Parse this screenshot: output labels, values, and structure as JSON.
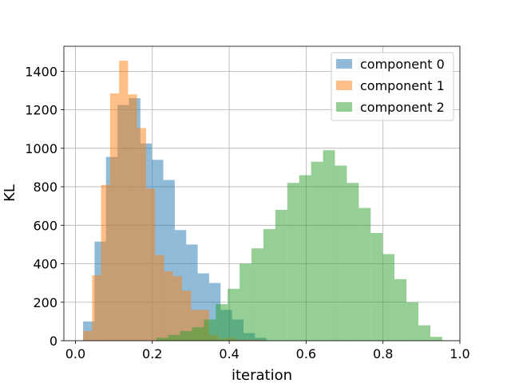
{
  "chart_data": {
    "type": "bar",
    "subtype": "histogram",
    "title": "",
    "xlabel": "iteration",
    "ylabel": "KL",
    "xlim": [
      -0.03,
      1.0
    ],
    "ylim": [
      0,
      1530
    ],
    "xticks": [
      0.0,
      0.2,
      0.4,
      0.6,
      0.8,
      1.0
    ],
    "xtick_labels": [
      "0.0",
      "0.2",
      "0.4",
      "0.6",
      "0.8",
      "1.0"
    ],
    "yticks": [
      0,
      200,
      400,
      600,
      800,
      1000,
      1200,
      1400
    ],
    "ytick_labels": [
      "0",
      "200",
      "400",
      "600",
      "800",
      "1000",
      "1200",
      "1400"
    ],
    "grid": true,
    "legend_position": "upper right",
    "series": [
      {
        "name": "component 0",
        "color": "#1f77b4",
        "alpha": 0.5,
        "bin_edges": [
          0.02,
          0.0498,
          0.0796,
          0.1094,
          0.1392,
          0.169,
          0.1988,
          0.2286,
          0.2584,
          0.2882,
          0.318,
          0.3478,
          0.3776,
          0.4074,
          0.4372,
          0.467,
          0.4968
        ],
        "counts": [
          100,
          515,
          955,
          1225,
          1260,
          1025,
          940,
          835,
          575,
          500,
          350,
          300,
          160,
          110,
          40,
          15
        ]
      },
      {
        "name": "component 1",
        "color": "#ff7f0e",
        "alpha": 0.5,
        "bin_edges": [
          0.02,
          0.0434,
          0.0668,
          0.0902,
          0.1136,
          0.137,
          0.1604,
          0.1838,
          0.2072,
          0.2306,
          0.254,
          0.2774,
          0.3008,
          0.3242,
          0.3476,
          0.371,
          0.3944,
          0.4178,
          0.4412,
          0.4646,
          0.488
        ],
        "counts": [
          50,
          340,
          810,
          1285,
          1455,
          1280,
          1105,
          790,
          445,
          360,
          335,
          260,
          160,
          160,
          30,
          10,
          15,
          5,
          5,
          5
        ]
      },
      {
        "name": "component 2",
        "color": "#2ca02c",
        "alpha": 0.5,
        "bin_edges": [
          0.21,
          0.241,
          0.272,
          0.303,
          0.334,
          0.365,
          0.396,
          0.427,
          0.458,
          0.489,
          0.52,
          0.551,
          0.582,
          0.613,
          0.644,
          0.675,
          0.706,
          0.737,
          0.768,
          0.799,
          0.83,
          0.861,
          0.892,
          0.923,
          0.954
        ],
        "counts": [
          15,
          30,
          50,
          70,
          110,
          190,
          270,
          400,
          480,
          580,
          680,
          820,
          860,
          930,
          990,
          910,
          820,
          690,
          560,
          450,
          320,
          200,
          80,
          20
        ]
      }
    ]
  }
}
